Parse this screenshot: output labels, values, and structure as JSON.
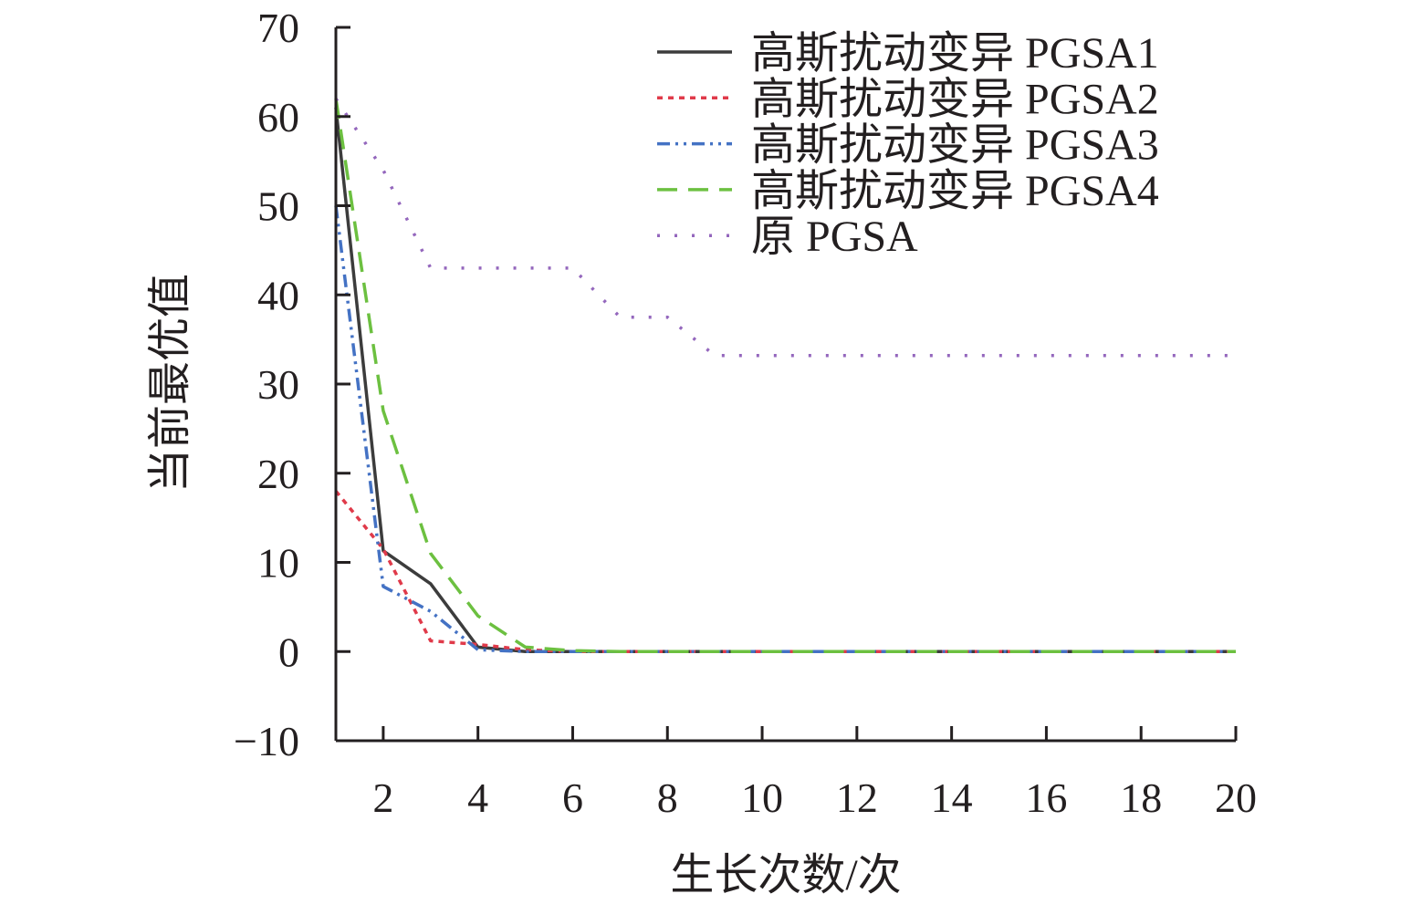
{
  "chart_data": {
    "type": "line",
    "title": "",
    "xlabel": "生长次数/次",
    "ylabel": "当前最优值",
    "xlim": [
      1,
      20
    ],
    "ylim": [
      -10,
      70
    ],
    "xticks": [
      2,
      4,
      6,
      8,
      10,
      12,
      14,
      16,
      18,
      20
    ],
    "yticks": [
      -10,
      0,
      10,
      20,
      30,
      40,
      50,
      60,
      70
    ],
    "ytick_labels": [
      "−10",
      "0",
      "10",
      "20",
      "30",
      "40",
      "50",
      "60",
      "70"
    ],
    "grid": false,
    "legend_placement": "top-right",
    "x": [
      1,
      2,
      3,
      4,
      5,
      6,
      7,
      8,
      9,
      10,
      11,
      12,
      13,
      14,
      15,
      16,
      17,
      18,
      19,
      20
    ],
    "series": [
      {
        "name": "高斯扰动变异 PGSA1",
        "color": "#3c3c3c",
        "dash": "solid",
        "values": [
          61,
          11.3,
          7.6,
          0.5,
          0,
          0,
          0,
          0,
          0,
          0,
          0,
          0,
          0,
          0,
          0,
          0,
          0,
          0,
          0,
          0
        ]
      },
      {
        "name": "高斯扰动变异 PGSA2",
        "color": "#e03a4a",
        "dash": "dot",
        "values": [
          18,
          11.5,
          1.2,
          0.8,
          0.2,
          0,
          0,
          0,
          0,
          0,
          0,
          0,
          0,
          0,
          0,
          0,
          0,
          0,
          0,
          0
        ]
      },
      {
        "name": "高斯扰动变异 PGSA3",
        "color": "#4472c4",
        "dash": "dash-dot-dot",
        "values": [
          50,
          7.3,
          4.5,
          0.2,
          0,
          0,
          0,
          0,
          0,
          0,
          0,
          0,
          0,
          0,
          0,
          0,
          0,
          0,
          0,
          0
        ]
      },
      {
        "name": "高斯扰动变异 PGSA4",
        "color": "#6cc040",
        "dash": "dash",
        "values": [
          62,
          27,
          11,
          4,
          0.5,
          0.1,
          0,
          0,
          0,
          0,
          0,
          0,
          0,
          0,
          0,
          0,
          0,
          0,
          0,
          0
        ]
      },
      {
        "name": "原 PGSA",
        "color": "#9467bd",
        "dash": "sparse-dot",
        "values": [
          62,
          54,
          43,
          43,
          43,
          43,
          37.5,
          37.5,
          33.2,
          33.2,
          33.2,
          33.2,
          33.2,
          33.2,
          33.2,
          33.2,
          33.2,
          33.2,
          33.2,
          33.2
        ]
      }
    ]
  }
}
